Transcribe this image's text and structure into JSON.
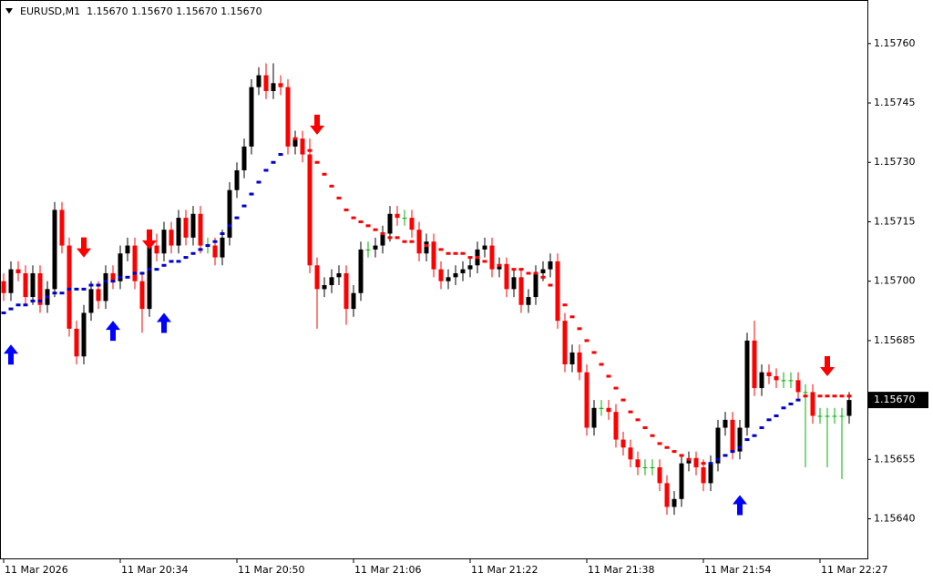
{
  "chart_data": {
    "type": "candlestick",
    "title": "EURUSD,M1  1.15670 1.15670 1.15670 1.15670",
    "up_color": "#000000",
    "down_color": "#ff0000",
    "doji_color": "#00b000",
    "open": [
      1.157,
      1.15697,
      1.15703,
      1.15702,
      1.15696,
      1.15702,
      1.15694,
      1.15698,
      1.15718,
      1.15709,
      1.15688,
      1.15681,
      1.15692,
      1.15698,
      1.15695,
      1.15702,
      1.157,
      1.15707,
      1.15709,
      1.157,
      1.15693,
      1.15709,
      1.15707,
      1.15713,
      1.15709,
      1.15716,
      1.15711,
      1.15717,
      1.15709,
      1.15709,
      1.15706,
      1.15711,
      1.15723,
      1.15728,
      1.15734,
      1.15749,
      1.15752,
      1.15748,
      1.1575,
      1.15749,
      1.15734,
      1.15736,
      1.15732,
      1.15704,
      1.15698,
      1.15699,
      1.15701,
      1.15702,
      1.15693,
      1.15697,
      1.15708,
      1.15708,
      1.15709,
      1.15712,
      1.15717,
      1.15716,
      1.15716,
      1.15713,
      1.15707,
      1.1571,
      1.15703,
      1.157,
      1.15701,
      1.15702,
      1.15703,
      1.15704,
      1.15708,
      1.15709,
      1.15703,
      1.15704,
      1.15698,
      1.15701,
      1.15694,
      1.15696,
      1.15702,
      1.15703,
      1.15705,
      1.1569,
      1.15679,
      1.15682,
      1.15677,
      1.15663,
      1.15668,
      1.15668,
      1.15667,
      1.1566,
      1.15658,
      1.15655,
      1.15653,
      1.15653,
      1.15653,
      1.15649,
      1.15643,
      1.15645,
      1.15654,
      1.15655,
      1.15653,
      1.15649,
      1.15654,
      1.15663,
      1.15665,
      1.15657,
      1.15663,
      1.15685,
      1.15673,
      1.15677,
      1.15676,
      1.15675,
      1.15675,
      1.15675,
      1.15672,
      1.15672,
      1.15666,
      1.15666,
      1.15666,
      1.15666,
      1.15666
    ],
    "high": [
      1.15702,
      1.15705,
      1.15705,
      1.15704,
      1.15704,
      1.15704,
      1.157,
      1.1572,
      1.1572,
      1.15711,
      1.1569,
      1.15694,
      1.157,
      1.157,
      1.15704,
      1.15704,
      1.15709,
      1.15711,
      1.15711,
      1.15702,
      1.15711,
      1.15712,
      1.15715,
      1.15715,
      1.15718,
      1.15718,
      1.15719,
      1.15719,
      1.15711,
      1.15711,
      1.15713,
      1.15725,
      1.1573,
      1.15736,
      1.15751,
      1.15754,
      1.15755,
      1.15755,
      1.15752,
      1.15751,
      1.15738,
      1.15738,
      1.15736,
      1.15706,
      1.15701,
      1.15703,
      1.15704,
      1.15704,
      1.15699,
      1.1571,
      1.1571,
      1.15711,
      1.15714,
      1.15719,
      1.15719,
      1.15718,
      1.15718,
      1.15715,
      1.15712,
      1.15712,
      1.15705,
      1.15703,
      1.15704,
      1.15705,
      1.15706,
      1.1571,
      1.15711,
      1.15711,
      1.15706,
      1.15706,
      1.15703,
      1.15703,
      1.15698,
      1.15704,
      1.15705,
      1.15707,
      1.15707,
      1.15692,
      1.15684,
      1.15684,
      1.15679,
      1.1567,
      1.1567,
      1.1567,
      1.15669,
      1.15662,
      1.1566,
      1.15657,
      1.15655,
      1.15655,
      1.15655,
      1.15651,
      1.15647,
      1.15656,
      1.15657,
      1.15657,
      1.15655,
      1.15656,
      1.15665,
      1.15667,
      1.15667,
      1.15665,
      1.15687,
      1.1569,
      1.15679,
      1.15679,
      1.15678,
      1.15677,
      1.15677,
      1.15677,
      1.15674,
      1.15674,
      1.15668,
      1.15668,
      1.15668,
      1.15668,
      1.15672
    ],
    "low": [
      1.15695,
      1.15695,
      1.157,
      1.15694,
      1.15694,
      1.15692,
      1.15692,
      1.15696,
      1.15707,
      1.15686,
      1.15679,
      1.15679,
      1.1569,
      1.15693,
      1.15693,
      1.15698,
      1.15698,
      1.15705,
      1.15698,
      1.15687,
      1.15691,
      1.15705,
      1.15705,
      1.15707,
      1.15707,
      1.15709,
      1.15709,
      1.15707,
      1.15707,
      1.15704,
      1.15704,
      1.15709,
      1.15721,
      1.15726,
      1.15732,
      1.15747,
      1.15746,
      1.15746,
      1.15747,
      1.15732,
      1.15732,
      1.1573,
      1.15702,
      1.15688,
      1.15696,
      1.15697,
      1.15699,
      1.15689,
      1.15691,
      1.15695,
      1.15706,
      1.15706,
      1.15707,
      1.1571,
      1.15714,
      1.15714,
      1.15711,
      1.15705,
      1.15705,
      1.15701,
      1.15698,
      1.15698,
      1.15699,
      1.157,
      1.15701,
      1.15702,
      1.15706,
      1.15701,
      1.15701,
      1.15696,
      1.15696,
      1.15692,
      1.15692,
      1.15694,
      1.157,
      1.15701,
      1.15688,
      1.15677,
      1.15677,
      1.15675,
      1.15661,
      1.15661,
      1.15666,
      1.15665,
      1.15658,
      1.15656,
      1.15653,
      1.15651,
      1.15651,
      1.15651,
      1.15647,
      1.15641,
      1.15641,
      1.15643,
      1.15652,
      1.15651,
      1.15647,
      1.15647,
      1.15652,
      1.15661,
      1.15655,
      1.15655,
      1.15661,
      1.15671,
      1.15671,
      1.15674,
      1.15673,
      1.15673,
      1.15673,
      1.1567,
      1.15653,
      1.15664,
      1.15664,
      1.15653,
      1.15664,
      1.1565,
      1.15664
    ],
    "close": [
      1.15697,
      1.15703,
      1.15702,
      1.15696,
      1.15702,
      1.15694,
      1.15698,
      1.15718,
      1.15709,
      1.15688,
      1.15681,
      1.15692,
      1.15698,
      1.15695,
      1.15702,
      1.157,
      1.15707,
      1.15709,
      1.157,
      1.15693,
      1.15709,
      1.15707,
      1.15713,
      1.15709,
      1.15716,
      1.15711,
      1.15717,
      1.15709,
      1.15709,
      1.15706,
      1.15711,
      1.15723,
      1.15728,
      1.15734,
      1.15749,
      1.15752,
      1.15748,
      1.1575,
      1.15749,
      1.15734,
      1.15736,
      1.15732,
      1.15704,
      1.15698,
      1.15699,
      1.15701,
      1.15702,
      1.15693,
      1.15697,
      1.15708,
      1.15708,
      1.15709,
      1.15712,
      1.15717,
      1.15716,
      1.15716,
      1.15713,
      1.15707,
      1.1571,
      1.15703,
      1.157,
      1.15701,
      1.15702,
      1.15703,
      1.15704,
      1.15708,
      1.15709,
      1.15703,
      1.15704,
      1.15698,
      1.15701,
      1.15694,
      1.15696,
      1.15702,
      1.15703,
      1.15705,
      1.1569,
      1.15679,
      1.15682,
      1.15677,
      1.15663,
      1.15668,
      1.15668,
      1.15667,
      1.1566,
      1.15658,
      1.15655,
      1.15653,
      1.15653,
      1.15653,
      1.15649,
      1.15643,
      1.15645,
      1.15654,
      1.15655,
      1.15653,
      1.15649,
      1.15654,
      1.15663,
      1.15665,
      1.15657,
      1.15663,
      1.15685,
      1.15673,
      1.15677,
      1.15676,
      1.15675,
      1.15675,
      1.15675,
      1.15672,
      1.15672,
      1.15666,
      1.15666,
      1.15666,
      1.15666,
      1.15666,
      1.1567
    ],
    "trend_up": {
      "color": "#0000cc",
      "values": [
        1.15692,
        1.15693,
        1.15694,
        1.15694,
        1.15695,
        1.15695,
        1.15696,
        1.15697,
        1.15697,
        1.15698,
        1.15698,
        1.15698,
        1.15699,
        1.15699,
        1.157,
        1.157,
        1.15701,
        1.15701,
        1.15702,
        1.15702,
        1.15703,
        1.15703,
        1.15704,
        1.15705,
        1.15705,
        1.15706,
        1.15707,
        1.15708,
        1.15709,
        1.1571,
        1.15712,
        1.15714,
        1.15716,
        1.15719,
        1.15722,
        1.15725,
        1.15728,
        1.1573,
        1.15732,
        null,
        null,
        null,
        null,
        null,
        null,
        null,
        null,
        null,
        null,
        null,
        null,
        null,
        null,
        null,
        null,
        null,
        null,
        null,
        null,
        null,
        null,
        null,
        null,
        null,
        null,
        null,
        null,
        null,
        null,
        null,
        null,
        null,
        null,
        null,
        null,
        null,
        null,
        null,
        null,
        null,
        null,
        null,
        null,
        null,
        null,
        null,
        null,
        null,
        null,
        null,
        null,
        null,
        null,
        null,
        null,
        null,
        null,
        1.15654,
        1.15655,
        1.15656,
        1.15657,
        1.15658,
        1.1566,
        1.15661,
        1.15663,
        1.15665,
        1.15666,
        1.15668,
        1.15669,
        1.1567,
        null,
        null,
        null,
        null,
        null,
        null,
        null
      ]
    },
    "trend_down": {
      "color": "#ff0000",
      "values": [
        null,
        null,
        null,
        null,
        null,
        null,
        null,
        null,
        null,
        null,
        null,
        null,
        null,
        null,
        null,
        null,
        null,
        null,
        null,
        null,
        null,
        null,
        null,
        null,
        null,
        null,
        null,
        null,
        null,
        null,
        null,
        null,
        null,
        null,
        null,
        null,
        null,
        null,
        null,
        1.15737,
        1.15736,
        1.15735,
        1.15733,
        1.1573,
        1.15727,
        1.15724,
        1.15721,
        1.15718,
        1.15716,
        1.15715,
        1.15714,
        1.15713,
        1.15712,
        1.15711,
        1.15711,
        1.1571,
        1.1571,
        1.15709,
        1.15709,
        1.15708,
        1.15708,
        1.15707,
        1.15707,
        1.15707,
        1.15706,
        1.15706,
        1.15705,
        1.15705,
        1.15704,
        1.15704,
        1.15703,
        1.15703,
        1.15702,
        1.15702,
        1.15701,
        1.15699,
        1.15697,
        1.15694,
        1.15691,
        1.15688,
        1.15685,
        1.15682,
        1.15679,
        1.15676,
        1.15673,
        1.1567,
        1.15667,
        1.15665,
        1.15663,
        1.15661,
        1.15659,
        1.15658,
        1.15657,
        1.15656,
        1.15655,
        1.15655,
        1.15654,
        null,
        null,
        null,
        null,
        null,
        null,
        null,
        null,
        null,
        null,
        null,
        null,
        null,
        1.15671,
        1.15671,
        1.15671,
        1.15671,
        1.15671,
        1.15671,
        1.15671
      ]
    },
    "buy_signals": {
      "color": "#0000ff",
      "indices": [
        1,
        15,
        22,
        101
      ],
      "values": [
        1.15684,
        1.1569,
        1.15692,
        1.15646
      ]
    },
    "sell_signals": {
      "color": "#ff0000",
      "indices": [
        11,
        20,
        43,
        113
      ],
      "values": [
        1.15706,
        1.15708,
        1.15737,
        1.15676
      ]
    },
    "last_price": {
      "value": 1.1567,
      "label": "1.15670"
    },
    "xlim": [
      -0.5,
      118.5
    ],
    "xticks": [
      {
        "value": 0,
        "label": "11 Mar 2026"
      },
      {
        "value": 16,
        "label": "11 Mar 20:34"
      },
      {
        "value": 32,
        "label": "11 Mar 20:50"
      },
      {
        "value": 48,
        "label": "11 Mar 21:06"
      },
      {
        "value": 64,
        "label": "11 Mar 21:22"
      },
      {
        "value": 80,
        "label": "11 Mar 21:38"
      },
      {
        "value": 96,
        "label": "11 Mar 21:54"
      },
      {
        "value": 112,
        "label": "11 Mar 22:27"
      }
    ],
    "ylim": [
      1.1563,
      1.15771
    ],
    "yticks": [
      {
        "value": 1.1564,
        "label": "1.15640"
      },
      1.15655,
      {
        "value": 1.1567,
        "label": "1.15670"
      },
      1.15685,
      {
        "value": 1.157,
        "label": "1.15700"
      },
      1.15715,
      {
        "value": 1.1573,
        "label": "1.15730"
      },
      1.15745,
      {
        "value": 1.1576,
        "label": "1.15760"
      }
    ]
  }
}
